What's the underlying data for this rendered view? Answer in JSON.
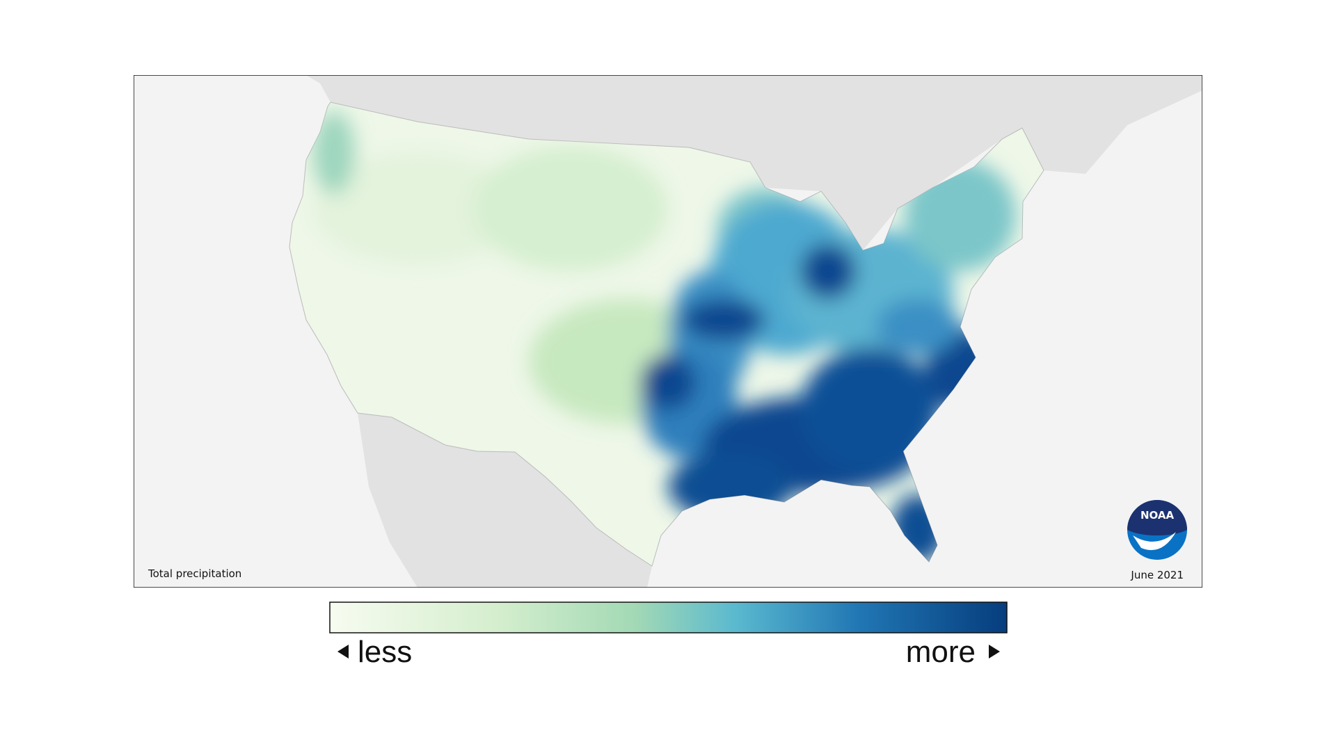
{
  "map": {
    "title": "Total precipitation",
    "date": "June 2021",
    "logo": "NOAA"
  },
  "legend": {
    "low": "less",
    "high": "more"
  }
}
